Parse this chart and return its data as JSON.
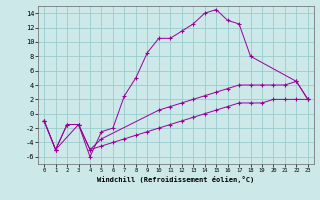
{
  "xlabel": "Windchill (Refroidissement éolien,°C)",
  "background_color": "#cce8e8",
  "grid_color": "#99cccc",
  "line_color": "#990099",
  "xlim": [
    -0.5,
    23.5
  ],
  "ylim": [
    -7,
    15
  ],
  "xticks": [
    0,
    1,
    2,
    3,
    4,
    5,
    6,
    7,
    8,
    9,
    10,
    11,
    12,
    13,
    14,
    15,
    16,
    17,
    18,
    19,
    20,
    21,
    22,
    23
  ],
  "yticks": [
    -6,
    -4,
    -2,
    0,
    2,
    4,
    6,
    8,
    10,
    12,
    14
  ],
  "line1_x": [
    0,
    1,
    3,
    4,
    5,
    6,
    7,
    8,
    9,
    10,
    11,
    12,
    13,
    14,
    15,
    16,
    17,
    18,
    22,
    23
  ],
  "line1_y": [
    -1,
    -5,
    -1.5,
    -6,
    -2.5,
    -2,
    2.5,
    5,
    8.5,
    10.5,
    10.5,
    11.5,
    12.5,
    14,
    14.5,
    13,
    12.5,
    8,
    4.5,
    2
  ],
  "line2_x": [
    0,
    1,
    2,
    3,
    4,
    5,
    10,
    11,
    12,
    13,
    14,
    15,
    16,
    17,
    18,
    19,
    20,
    21,
    22,
    23
  ],
  "line2_y": [
    -1,
    -5,
    -1.5,
    -1.5,
    -5,
    -3.5,
    0.5,
    1,
    1.5,
    2,
    2.5,
    3,
    3.5,
    4,
    4,
    4,
    4,
    4,
    4.5,
    2
  ],
  "line3_x": [
    0,
    1,
    2,
    3,
    4,
    5,
    6,
    7,
    8,
    9,
    10,
    11,
    12,
    13,
    14,
    15,
    16,
    17,
    18,
    19,
    20,
    21,
    22,
    23
  ],
  "line3_y": [
    -1,
    -5,
    -1.5,
    -1.5,
    -5,
    -4.5,
    -4,
    -3.5,
    -3,
    -2.5,
    -2,
    -1.5,
    -1,
    -0.5,
    0,
    0.5,
    1,
    1.5,
    1.5,
    1.5,
    2,
    2,
    2,
    2
  ],
  "figwidth": 3.2,
  "figheight": 2.0,
  "dpi": 100
}
